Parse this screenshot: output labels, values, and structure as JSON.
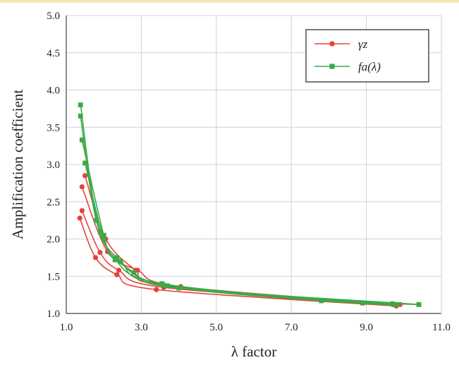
{
  "chart_data": {
    "type": "line",
    "xlabel": "λ factor",
    "ylabel": "Amplification coefficient",
    "xlim": [
      1.0,
      11.0
    ],
    "ylim": [
      1.0,
      5.0
    ],
    "x_ticks": [
      "1.0",
      "3.0",
      "5.0",
      "7.0",
      "9.0",
      "11.0"
    ],
    "y_ticks": [
      "1.0",
      "1.5",
      "2.0",
      "2.5",
      "3.0",
      "3.5",
      "4.0",
      "4.5",
      "5.0"
    ],
    "grid": true,
    "legend_position": "top-right",
    "legend": [
      {
        "label": "γz",
        "color": "#e8413c",
        "marker": "circle"
      },
      {
        "label": "fa(λ)",
        "color": "#3aaa46",
        "marker": "square"
      }
    ],
    "series": [
      {
        "group": "γz",
        "color": "#e8413c",
        "marker": "circle",
        "points": [
          [
            1.36,
            2.28
          ],
          [
            1.78,
            1.75
          ],
          [
            2.35,
            1.52
          ],
          [
            3.4,
            1.32
          ],
          [
            9.8,
            1.1
          ]
        ]
      },
      {
        "group": "γz",
        "color": "#e8413c",
        "marker": "circle",
        "points": [
          [
            1.42,
            2.38
          ],
          [
            1.9,
            1.82
          ],
          [
            2.4,
            1.58
          ],
          [
            3.6,
            1.35
          ],
          [
            9.75,
            1.12
          ]
        ]
      },
      {
        "group": "γz",
        "color": "#e8413c",
        "marker": "circle",
        "points": [
          [
            1.42,
            2.7
          ],
          [
            2.1,
            1.83
          ],
          [
            2.9,
            1.58
          ],
          [
            4.05,
            1.36
          ],
          [
            9.9,
            1.12
          ]
        ]
      },
      {
        "group": "γz",
        "color": "#e8413c",
        "marker": "circle",
        "points": [
          [
            1.5,
            2.85
          ],
          [
            2.05,
            2.0
          ],
          [
            2.85,
            1.58
          ],
          [
            3.6,
            1.38
          ],
          [
            9.7,
            1.12
          ]
        ]
      },
      {
        "group": "fa(λ)",
        "color": "#3aaa46",
        "marker": "square",
        "points": [
          [
            1.38,
            3.8
          ],
          [
            1.9,
            2.1
          ],
          [
            2.8,
            1.55
          ],
          [
            4.0,
            1.34
          ],
          [
            9.7,
            1.13
          ]
        ]
      },
      {
        "group": "fa(λ)",
        "color": "#3aaa46",
        "marker": "square",
        "points": [
          [
            1.38,
            3.65
          ],
          [
            1.8,
            2.25
          ],
          [
            2.35,
            1.75
          ],
          [
            3.6,
            1.38
          ],
          [
            7.8,
            1.17
          ],
          [
            10.4,
            1.12
          ]
        ]
      },
      {
        "group": "fa(λ)",
        "color": "#3aaa46",
        "marker": "square",
        "points": [
          [
            1.42,
            3.33
          ],
          [
            2.0,
            2.05
          ],
          [
            2.3,
            1.72
          ],
          [
            3.55,
            1.4
          ],
          [
            8.9,
            1.14
          ],
          [
            9.8,
            1.12
          ]
        ]
      },
      {
        "group": "fa(λ)",
        "color": "#3aaa46",
        "marker": "square",
        "points": [
          [
            1.5,
            3.02
          ],
          [
            2.0,
            2.0
          ],
          [
            2.45,
            1.7
          ],
          [
            3.7,
            1.37
          ],
          [
            10.4,
            1.12
          ]
        ]
      }
    ]
  }
}
